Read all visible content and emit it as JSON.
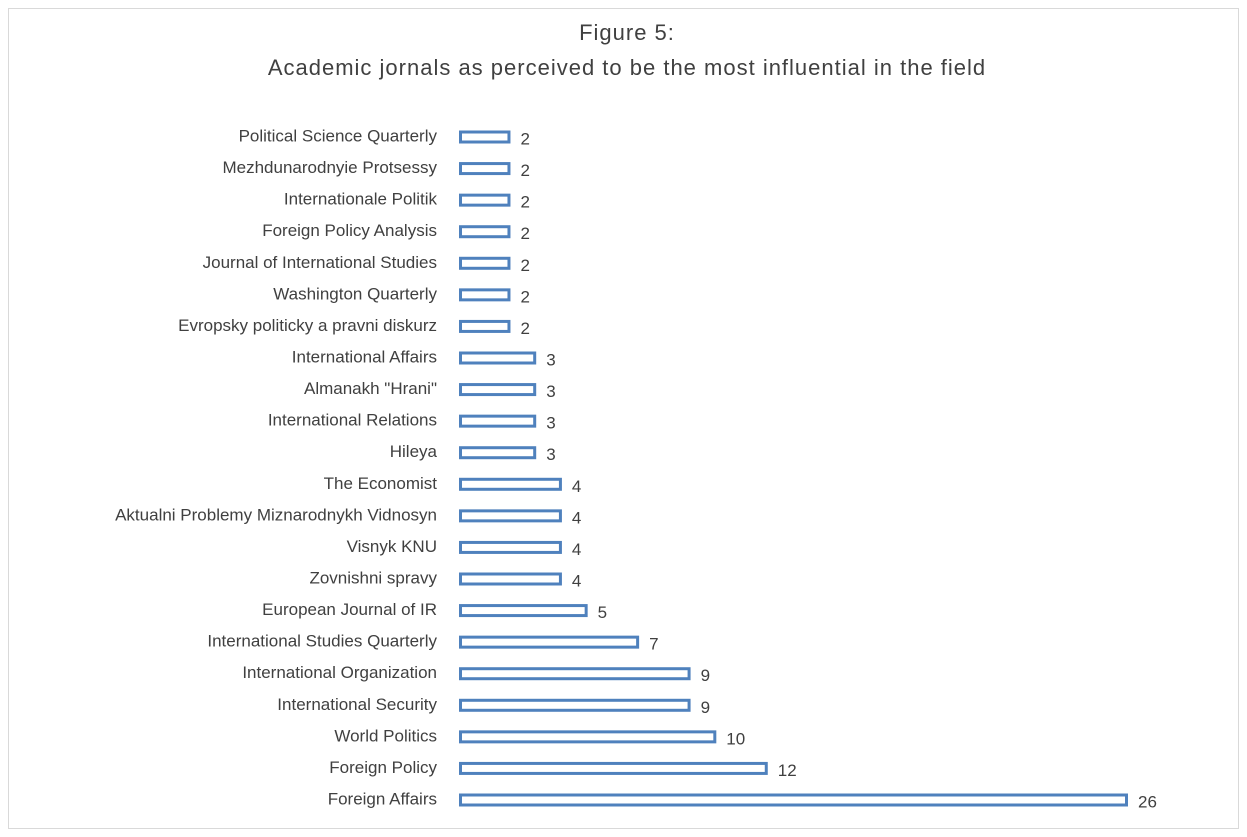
{
  "chart_data": {
    "type": "hbar",
    "title": "Figure 5:",
    "subtitle": "Academic jornals as perceived to be the most influential in the field",
    "categories": [
      "Political Science Quarterly",
      "Mezhdunarodnyie Protsessy",
      "Internationale Politik",
      "Foreign Policy Analysis",
      "Journal of International Studies",
      "Washington Quarterly",
      "Evropsky politicky a pravni diskurz",
      "International Affairs",
      "Almanakh \"Hrani\"",
      "International Relations",
      "Hileya",
      "The Economist",
      "Aktualni Problemy Miznarodnykh Vidnosyn",
      "Visnyk KNU",
      "Zovnishni spravy",
      "European Journal of IR",
      "International Studies Quarterly",
      "International Organization",
      "International Security",
      "World Politics",
      "Foreign Policy",
      "Foreign Affairs"
    ],
    "values": [
      2,
      2,
      2,
      2,
      2,
      2,
      2,
      3,
      3,
      3,
      3,
      4,
      4,
      4,
      4,
      5,
      7,
      9,
      9,
      10,
      12,
      26
    ],
    "color": "#4f81bd"
  }
}
